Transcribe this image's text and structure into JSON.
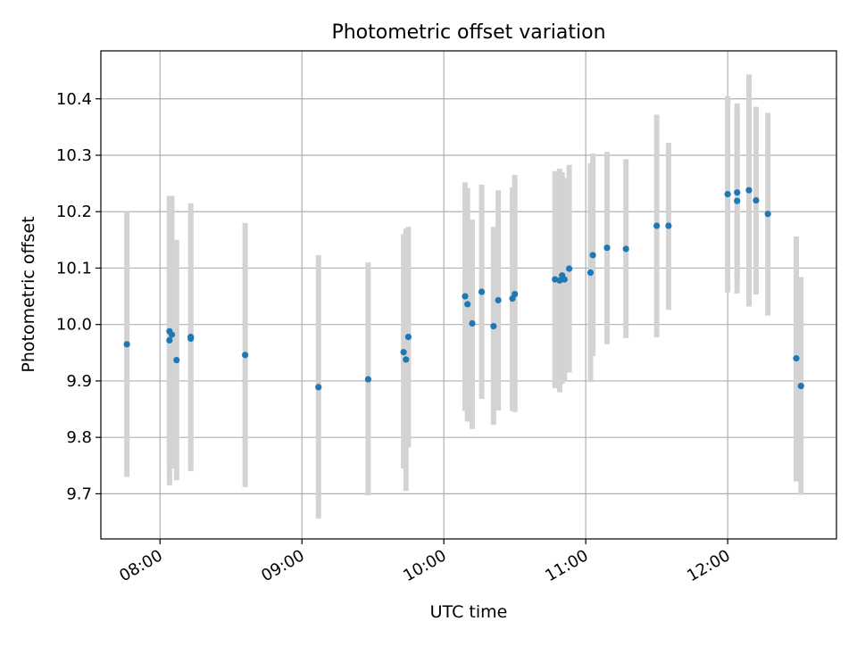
{
  "chart_data": {
    "type": "scatter",
    "title": "Photometric offset variation",
    "xlabel": "UTC time",
    "ylabel": "Photometric offset",
    "x_unit": "UTC time of day",
    "xlim": [
      "07:35",
      "12:46"
    ],
    "ylim": [
      9.62,
      10.485
    ],
    "x_ticks": [
      "08:00",
      "09:00",
      "10:00",
      "11:00",
      "12:00"
    ],
    "y_ticks": [
      "9.7",
      "9.8",
      "9.9",
      "10.0",
      "10.1",
      "10.2",
      "10.3",
      "10.4"
    ],
    "grid": true,
    "colors": {
      "marker": "#1f77b4",
      "errorbar": "#d3d3d3",
      "grid": "#b0b0b0"
    },
    "series": [
      {
        "points": [
          {
            "x": "07:46",
            "y": 9.965,
            "yerr": [
              9.73,
              10.2
            ]
          },
          {
            "x": "08:04",
            "y": 9.988,
            "yerr": [
              9.75,
              10.226
            ]
          },
          {
            "x": "08:04",
            "y": 9.972,
            "yerr": [
              9.715,
              10.228
            ]
          },
          {
            "x": "08:05",
            "y": 9.982,
            "yerr": [
              9.745,
              10.228
            ]
          },
          {
            "x": "08:07",
            "y": 9.937,
            "yerr": [
              9.724,
              10.15
            ]
          },
          {
            "x": "08:13",
            "y": 9.978,
            "yerr": [
              9.74,
              10.215
            ]
          },
          {
            "x": "08:13",
            "y": 9.975,
            "yerr": [
              9.745,
              10.2
            ]
          },
          {
            "x": "08:36",
            "y": 9.946,
            "yerr": [
              9.712,
              10.18
            ]
          },
          {
            "x": "09:07",
            "y": 9.889,
            "yerr": [
              9.656,
              10.123
            ]
          },
          {
            "x": "09:28",
            "y": 9.903,
            "yerr": [
              9.697,
              10.11
            ]
          },
          {
            "x": "09:43",
            "y": 9.951,
            "yerr": [
              9.745,
              10.16
            ]
          },
          {
            "x": "09:44",
            "y": 9.938,
            "yerr": [
              9.705,
              10.17
            ]
          },
          {
            "x": "09:45",
            "y": 9.978,
            "yerr": [
              9.782,
              10.173
            ]
          },
          {
            "x": "10:09",
            "y": 10.05,
            "yerr": [
              9.847,
              10.252
            ]
          },
          {
            "x": "10:10",
            "y": 10.036,
            "yerr": [
              9.828,
              10.242
            ]
          },
          {
            "x": "10:12",
            "y": 10.002,
            "yerr": [
              9.815,
              10.186
            ]
          },
          {
            "x": "10:16",
            "y": 10.058,
            "yerr": [
              9.868,
              10.248
            ]
          },
          {
            "x": "10:21",
            "y": 9.997,
            "yerr": [
              9.822,
              10.173
            ]
          },
          {
            "x": "10:23",
            "y": 10.043,
            "yerr": [
              9.848,
              10.238
            ]
          },
          {
            "x": "10:29",
            "y": 10.046,
            "yerr": [
              9.847,
              10.243
            ]
          },
          {
            "x": "10:30",
            "y": 10.054,
            "yerr": [
              9.845,
              10.265
            ]
          },
          {
            "x": "10:47",
            "y": 10.08,
            "yerr": [
              9.887,
              10.272
            ]
          },
          {
            "x": "10:49",
            "y": 10.078,
            "yerr": [
              9.88,
              10.276
            ]
          },
          {
            "x": "10:50",
            "y": 10.087,
            "yerr": [
              9.895,
              10.27
            ]
          },
          {
            "x": "10:51",
            "y": 10.08,
            "yerr": [
              9.9,
              10.26
            ]
          },
          {
            "x": "10:53",
            "y": 10.099,
            "yerr": [
              9.915,
              10.283
            ]
          },
          {
            "x": "11:02",
            "y": 10.092,
            "yerr": [
              9.898,
              10.286
            ]
          },
          {
            "x": "11:03",
            "y": 10.123,
            "yerr": [
              9.944,
              10.303
            ]
          },
          {
            "x": "11:09",
            "y": 10.136,
            "yerr": [
              9.965,
              10.306
            ]
          },
          {
            "x": "11:17",
            "y": 10.134,
            "yerr": [
              9.976,
              10.293
            ]
          },
          {
            "x": "11:30",
            "y": 10.175,
            "yerr": [
              9.977,
              10.372
            ]
          },
          {
            "x": "11:35",
            "y": 10.175,
            "yerr": [
              10.026,
              10.322
            ]
          },
          {
            "x": "12:00",
            "y": 10.231,
            "yerr": [
              10.057,
              10.405
            ]
          },
          {
            "x": "12:04",
            "y": 10.219,
            "yerr": [
              10.055,
              10.383
            ]
          },
          {
            "x": "12:04",
            "y": 10.234,
            "yerr": [
              10.077,
              10.392
            ]
          },
          {
            "x": "12:09",
            "y": 10.238,
            "yerr": [
              10.032,
              10.443
            ]
          },
          {
            "x": "12:12",
            "y": 10.22,
            "yerr": [
              10.053,
              10.386
            ]
          },
          {
            "x": "12:17",
            "y": 10.196,
            "yerr": [
              10.016,
              10.375
            ]
          },
          {
            "x": "12:29",
            "y": 9.94,
            "yerr": [
              9.722,
              10.156
            ]
          },
          {
            "x": "12:31",
            "y": 9.891,
            "yerr": [
              9.698,
              10.084
            ]
          }
        ]
      }
    ]
  }
}
